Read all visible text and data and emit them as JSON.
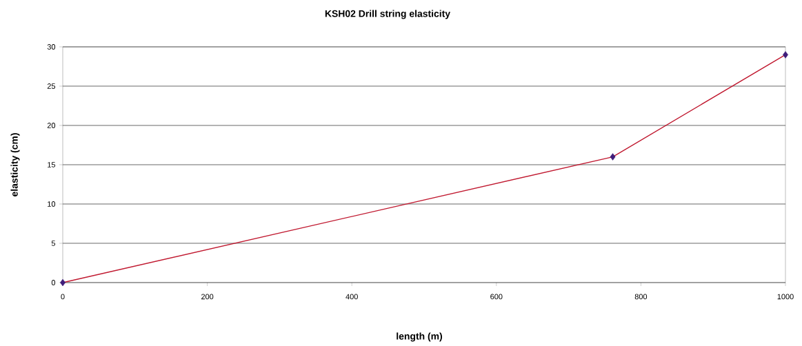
{
  "chart_data": {
    "type": "line",
    "title": "KSH02 Drill string elasticity",
    "xlabel": "length (m)",
    "ylabel": "elasticity (cm)",
    "x": [
      0,
      761,
      1000
    ],
    "series": [
      {
        "color": "#c0182f",
        "colors": [
          "#3f1d7a",
          "#3f1d7a",
          "#3f1d7a"
        ],
        "values": [
          0,
          16,
          29
        ]
      }
    ],
    "marker": "diamond",
    "xlim": [
      0,
      1000
    ],
    "ylim": [
      0,
      30
    ],
    "xticks": [
      0,
      200,
      400,
      600,
      800,
      1000
    ],
    "yticks": [
      0,
      5,
      10,
      15,
      20,
      25,
      30
    ],
    "grid": "y"
  }
}
